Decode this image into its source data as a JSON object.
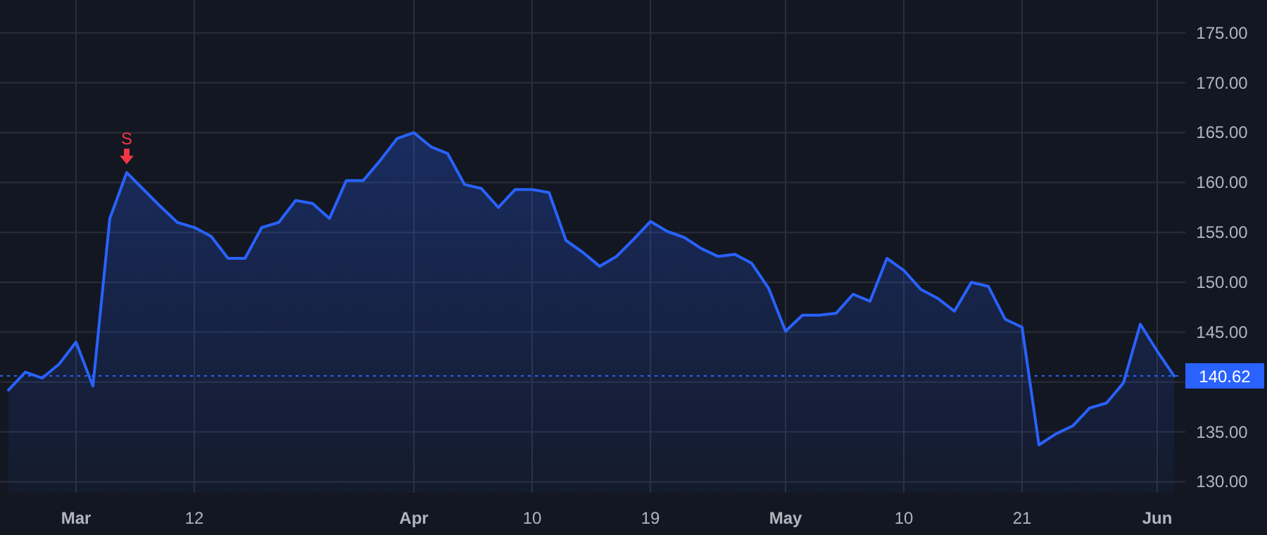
{
  "chart_data": {
    "type": "area",
    "categories": [
      null,
      null,
      null,
      null,
      "Mar",
      null,
      null,
      null,
      null,
      null,
      null,
      "12",
      null,
      null,
      null,
      null,
      null,
      null,
      null,
      null,
      null,
      null,
      null,
      null,
      "Apr",
      null,
      null,
      null,
      null,
      null,
      null,
      "10",
      null,
      null,
      null,
      null,
      null,
      null,
      "19",
      null,
      null,
      null,
      null,
      null,
      null,
      null,
      "May",
      null,
      null,
      null,
      null,
      null,
      null,
      "10",
      null,
      null,
      null,
      null,
      null,
      null,
      "21",
      null,
      null,
      null,
      null,
      null,
      null,
      null,
      "Jun",
      null
    ],
    "series": [
      {
        "color": "#2962ff",
        "values": [
          139.2,
          141.0,
          140.4,
          141.8,
          144.0,
          139.6,
          156.4,
          161.0,
          159.3,
          157.6,
          156.0,
          155.5,
          154.6,
          152.4,
          152.4,
          155.5,
          156.0,
          158.2,
          157.9,
          156.4,
          160.2,
          160.2,
          162.2,
          164.4,
          165.0,
          163.6,
          162.9,
          159.8,
          159.4,
          157.5,
          159.3,
          159.3,
          159.0,
          154.2,
          153.0,
          151.6,
          152.6,
          154.3,
          156.1,
          155.1,
          154.5,
          153.4,
          152.6,
          152.8,
          151.9,
          149.4,
          145.1,
          146.7,
          146.7,
          146.9,
          148.8,
          148.1,
          152.4,
          151.2,
          149.3,
          148.4,
          147.1,
          150.0,
          149.6,
          146.3,
          145.5,
          133.7,
          134.8,
          135.6,
          137.4,
          137.9,
          139.9,
          145.8,
          143.1,
          140.6
        ]
      }
    ],
    "ylim": [
      128.9,
      178.3
    ],
    "yticks": [
      {
        "value": 130,
        "label": "130.00"
      },
      {
        "value": 135,
        "label": "135.00"
      },
      {
        "value": 140,
        "label": null
      },
      {
        "value": 145,
        "label": "145.00"
      },
      {
        "value": 150,
        "label": "150.00"
      },
      {
        "value": 155,
        "label": "155.00"
      },
      {
        "value": 160,
        "label": "160.00"
      },
      {
        "value": 165,
        "label": "165.00"
      },
      {
        "value": 170,
        "label": "170.00"
      },
      {
        "value": 175,
        "label": "175.00"
      }
    ],
    "grid": true,
    "ref_lines": [
      {
        "axis": "y",
        "value": 140.62,
        "label": "140.62",
        "color": "#2962ff",
        "line_style": "dotted"
      }
    ],
    "annotations": [
      {
        "text": "S",
        "y": 161.0
      }
    ]
  }
}
